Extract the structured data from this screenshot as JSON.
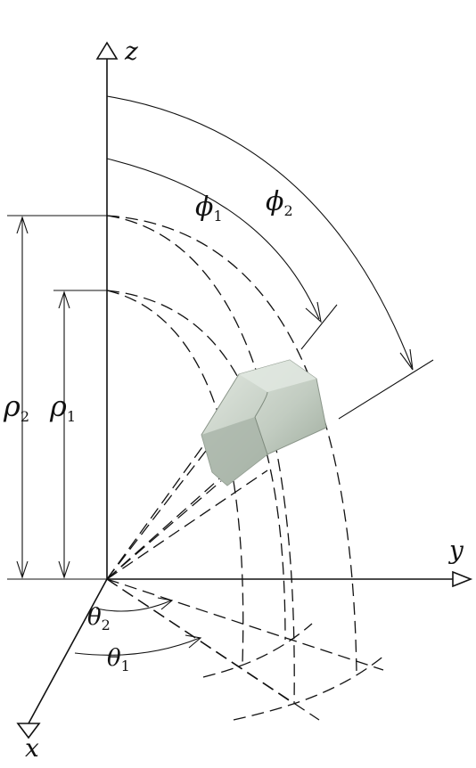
{
  "axes": {
    "z": "z",
    "y": "y",
    "x": "x"
  },
  "labels": {
    "phi1": {
      "sym": "ϕ",
      "sub": "1"
    },
    "phi2": {
      "sym": "ϕ",
      "sub": "2"
    },
    "rho1": {
      "sym": "ρ",
      "sub": "1"
    },
    "rho2": {
      "sym": "ρ",
      "sub": "2"
    },
    "theta1": {
      "sym": "θ",
      "sub": "1"
    },
    "theta2": {
      "sym": "θ",
      "sub": "2"
    }
  },
  "colors": {
    "ink": "#111111",
    "volume_fill": "#b9c4b8",
    "volume_dark": "#8c9a8b",
    "volume_light": "#dfe6de"
  }
}
